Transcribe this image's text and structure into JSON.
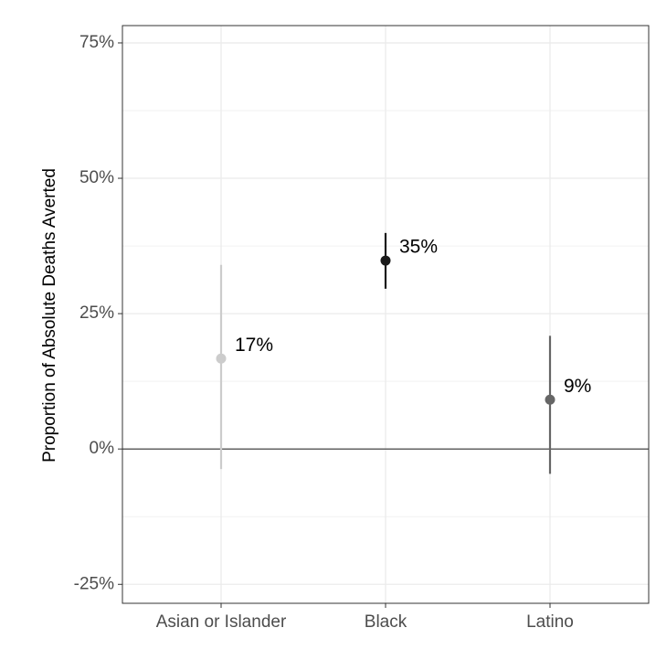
{
  "chart_data": {
    "type": "pointrange",
    "y_label": "Proportion of Absolute Deaths Averted",
    "categories": [
      "Asian or Islander",
      "Black",
      "Latino"
    ],
    "values": [
      16.7,
      34.8,
      9.1
    ],
    "value_labels": [
      "17%",
      "35%",
      "9%"
    ],
    "lower": [
      -3.7,
      29.6,
      -4.6
    ],
    "upper": [
      34.0,
      39.9,
      20.9
    ],
    "colors": [
      "#cccccc",
      "#1a1a1a",
      "#666666"
    ],
    "ylim": [
      -28.5,
      78.2
    ],
    "yticks": [
      {
        "value": -25,
        "label": "-25%"
      },
      {
        "value": 0,
        "label": "0%"
      },
      {
        "value": 25,
        "label": "25%"
      },
      {
        "value": 50,
        "label": "50%"
      },
      {
        "value": 75,
        "label": "75%"
      }
    ],
    "grid": true
  }
}
